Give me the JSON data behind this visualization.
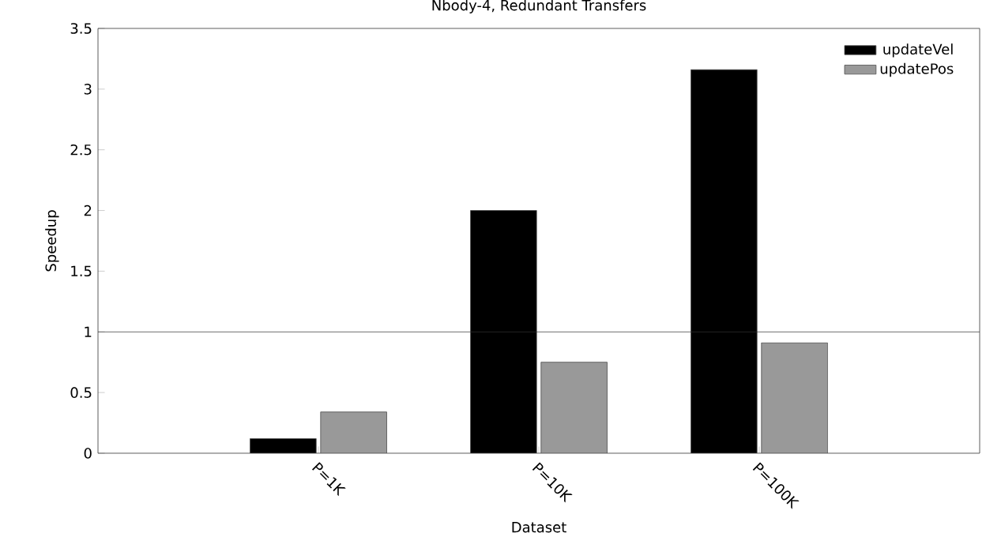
{
  "chart_data": {
    "type": "bar",
    "title": "Nbody-4, Redundant Transfers",
    "xlabel": "Dataset",
    "ylabel": "Speedup",
    "categories": [
      "P=1K",
      "P=10K",
      "P=100K"
    ],
    "series": [
      {
        "name": "updateVel",
        "color": "#000000",
        "values": [
          0.12,
          2.0,
          3.16
        ]
      },
      {
        "name": "updatePos",
        "color": "#999999",
        "values": [
          0.34,
          0.75,
          0.91
        ]
      }
    ],
    "ylim": [
      0,
      3.5
    ],
    "yticks": [
      0,
      0.5,
      1,
      1.5,
      2,
      2.5,
      3,
      3.5
    ],
    "ref_lines": [
      {
        "axis": "y",
        "value": 1
      }
    ],
    "grid": false,
    "legend": "top right"
  }
}
